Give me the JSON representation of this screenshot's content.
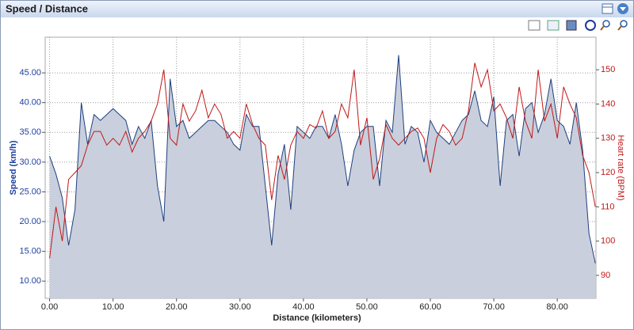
{
  "chart_data": {
    "type": "line",
    "title": "Speed / Distance",
    "xlabel": "Distance (kilometers)",
    "ylabel": "Speed (km/h)",
    "y2label": "Heart rate (BPM)",
    "x": [
      0,
      1,
      2,
      3,
      4,
      5,
      6,
      7,
      8,
      9,
      10,
      11,
      12,
      13,
      14,
      15,
      16,
      17,
      18,
      19,
      20,
      21,
      22,
      23,
      24,
      25,
      26,
      27,
      28,
      29,
      30,
      31,
      32,
      33,
      34,
      35,
      36,
      37,
      38,
      39,
      40,
      41,
      42,
      43,
      44,
      45,
      46,
      47,
      48,
      49,
      50,
      51,
      52,
      53,
      54,
      55,
      56,
      57,
      58,
      59,
      60,
      61,
      62,
      63,
      64,
      65,
      66,
      67,
      68,
      69,
      70,
      71,
      72,
      73,
      74,
      75,
      76,
      77,
      78,
      79,
      80,
      81,
      82,
      83,
      84,
      85,
      86
    ],
    "series": [
      {
        "color": "#1f3f7f",
        "fill": "#c9cfdc",
        "values": [
          31,
          28,
          24,
          16,
          22,
          40,
          33,
          38,
          37,
          38,
          39,
          38,
          37,
          33,
          36,
          34,
          37,
          26,
          20,
          44,
          36,
          37,
          34,
          35,
          36,
          37,
          37,
          36,
          35,
          33,
          32,
          38,
          36,
          36,
          26,
          16,
          28,
          33,
          22,
          36,
          35,
          34,
          36,
          36,
          34,
          38,
          33,
          26,
          32,
          35,
          36,
          36,
          26,
          37,
          35,
          48,
          33,
          36,
          35,
          30,
          37,
          35,
          34,
          33,
          35,
          37,
          38,
          42,
          37,
          36,
          41,
          26,
          37,
          38,
          31,
          39,
          40,
          35,
          38,
          44,
          37,
          36,
          33,
          40,
          32,
          18,
          13
        ]
      },
      {
        "color": "#c01818",
        "axis": "y2",
        "values": [
          95,
          110,
          100,
          118,
          120,
          122,
          128,
          132,
          132,
          128,
          130,
          128,
          132,
          126,
          130,
          132,
          135,
          140,
          150,
          130,
          128,
          140,
          135,
          138,
          144,
          136,
          140,
          137,
          130,
          132,
          130,
          140,
          134,
          130,
          128,
          112,
          125,
          118,
          128,
          132,
          130,
          134,
          133,
          138,
          130,
          132,
          140,
          136,
          150,
          128,
          136,
          118,
          124,
          134,
          130,
          128,
          130,
          132,
          133,
          130,
          120,
          130,
          134,
          132,
          128,
          130,
          138,
          152,
          145,
          150,
          138,
          140,
          136,
          130,
          145,
          135,
          130,
          150,
          135,
          140,
          130,
          145,
          140,
          136,
          125,
          120,
          110
        ]
      }
    ],
    "xlim": [
      -0.7,
      86.1
    ],
    "ylim": [
      7.1,
      51
    ],
    "y2lim": [
      83.3,
      159.5
    ],
    "xticks": [
      {
        "value": 0,
        "label": "0.00"
      },
      {
        "value": 10,
        "label": "10.00"
      },
      {
        "value": 20,
        "label": "20.00"
      },
      {
        "value": 30,
        "label": "30.00"
      },
      {
        "value": 40,
        "label": "40.00"
      },
      {
        "value": 50,
        "label": "50.00"
      },
      {
        "value": 60,
        "label": "60.00"
      },
      {
        "value": 70,
        "label": "70.00"
      },
      {
        "value": 80,
        "label": "80.00"
      }
    ],
    "yticks": [
      {
        "value": 10,
        "label": "10.00"
      },
      {
        "value": 15,
        "label": "15.00"
      },
      {
        "value": 20,
        "label": "20.00"
      },
      {
        "value": 25,
        "label": "25.00"
      },
      {
        "value": 30,
        "label": "30.00"
      },
      {
        "value": 35,
        "label": "35.00"
      },
      {
        "value": 40,
        "label": "40.00"
      },
      {
        "value": 45,
        "label": "45.00"
      }
    ],
    "y2ticks": [
      90,
      100,
      110,
      120,
      130,
      140,
      150
    ],
    "grid": true
  }
}
